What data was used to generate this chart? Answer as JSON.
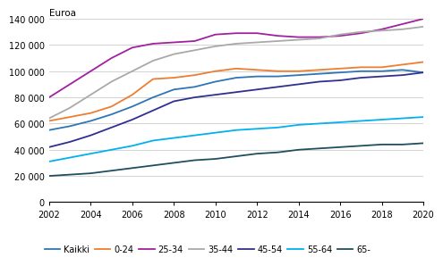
{
  "years": [
    2002,
    2003,
    2004,
    2005,
    2006,
    2007,
    2008,
    2009,
    2010,
    2011,
    2012,
    2013,
    2014,
    2015,
    2016,
    2017,
    2018,
    2019,
    2020
  ],
  "series": {
    "Kaikki": [
      55000,
      58000,
      62000,
      67000,
      73000,
      80000,
      86000,
      88000,
      92000,
      95000,
      96000,
      96000,
      97000,
      98000,
      99000,
      100000,
      100000,
      101000,
      99000
    ],
    "0-24": [
      62000,
      65000,
      68000,
      73000,
      82000,
      94000,
      95000,
      97000,
      100000,
      102000,
      101000,
      100000,
      100000,
      101000,
      102000,
      103000,
      103000,
      105000,
      107000
    ],
    "25-34": [
      80000,
      90000,
      100000,
      110000,
      118000,
      121000,
      122000,
      123000,
      128000,
      129000,
      129000,
      127000,
      126000,
      126000,
      127000,
      129000,
      132000,
      136000,
      140000
    ],
    "35-44": [
      64000,
      72000,
      82000,
      92000,
      100000,
      108000,
      113000,
      116000,
      119000,
      121000,
      122000,
      123000,
      124000,
      125000,
      128000,
      130000,
      131000,
      132000,
      134000
    ],
    "45-54": [
      42000,
      46000,
      51000,
      57000,
      63000,
      70000,
      77000,
      80000,
      82000,
      84000,
      86000,
      88000,
      90000,
      92000,
      93000,
      95000,
      96000,
      97000,
      99000
    ],
    "55-64": [
      31000,
      34000,
      37000,
      40000,
      43000,
      47000,
      49000,
      51000,
      53000,
      55000,
      56000,
      57000,
      59000,
      60000,
      61000,
      62000,
      63000,
      64000,
      65000
    ],
    "65-": [
      20000,
      21000,
      22000,
      24000,
      26000,
      28000,
      30000,
      32000,
      33000,
      35000,
      37000,
      38000,
      40000,
      41000,
      42000,
      43000,
      44000,
      44000,
      45000
    ]
  },
  "colors": {
    "Kaikki": "#2E75B6",
    "0-24": "#ED7D31",
    "25-34": "#A020A0",
    "35-44": "#A9A9A9",
    "45-54": "#2F2F8F",
    "55-64": "#00B0F0",
    "65-": "#1F4E5F"
  },
  "ylim": [
    0,
    140000
  ],
  "yticks": [
    0,
    20000,
    40000,
    60000,
    80000,
    100000,
    120000,
    140000
  ],
  "ylabel": "Euroa",
  "background_color": "#ffffff",
  "grid_color": "#cccccc",
  "tick_fontsize": 7,
  "legend_fontsize": 7
}
